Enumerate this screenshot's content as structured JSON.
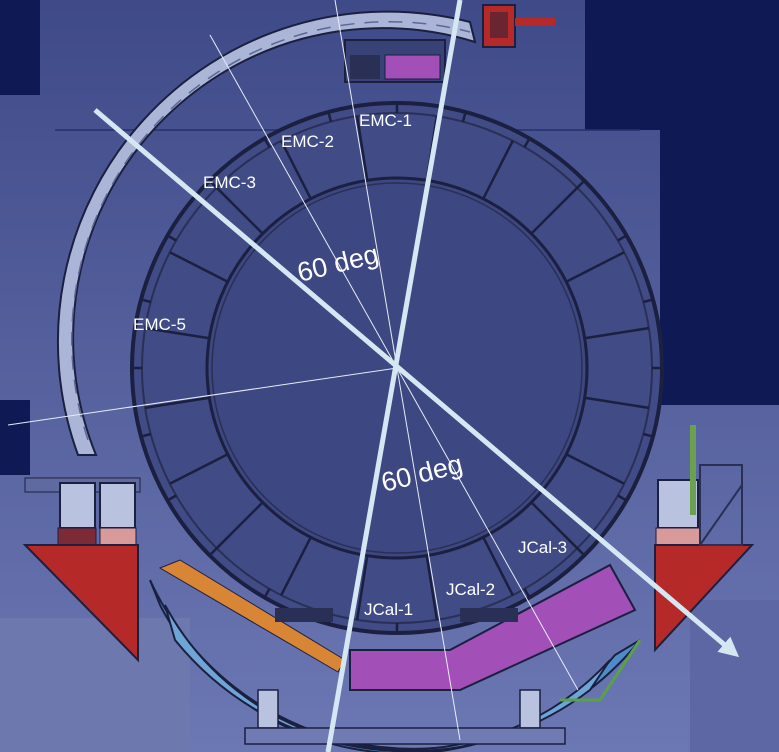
{
  "labels": {
    "emc1": "EMC-1",
    "emc2": "EMC-2",
    "emc3": "EMC-3",
    "emc5": "EMC-5",
    "angle_top": "60 deg",
    "angle_bottom": "60 deg",
    "jcal1": "JCal-1",
    "jcal2": "JCal-2",
    "jcal3": "JCal-3"
  },
  "colors": {
    "background_deep": "#0f1a55",
    "background_panel": "#4a5592",
    "structure": "#1b1f40",
    "arc_rail": "#b9c3e0",
    "support_red": "#b52a28",
    "module_magenta": "#a24fb7",
    "module_orange": "#d88535",
    "module_blue": "#4d8cc9",
    "arrow": "#d5e7f3"
  }
}
